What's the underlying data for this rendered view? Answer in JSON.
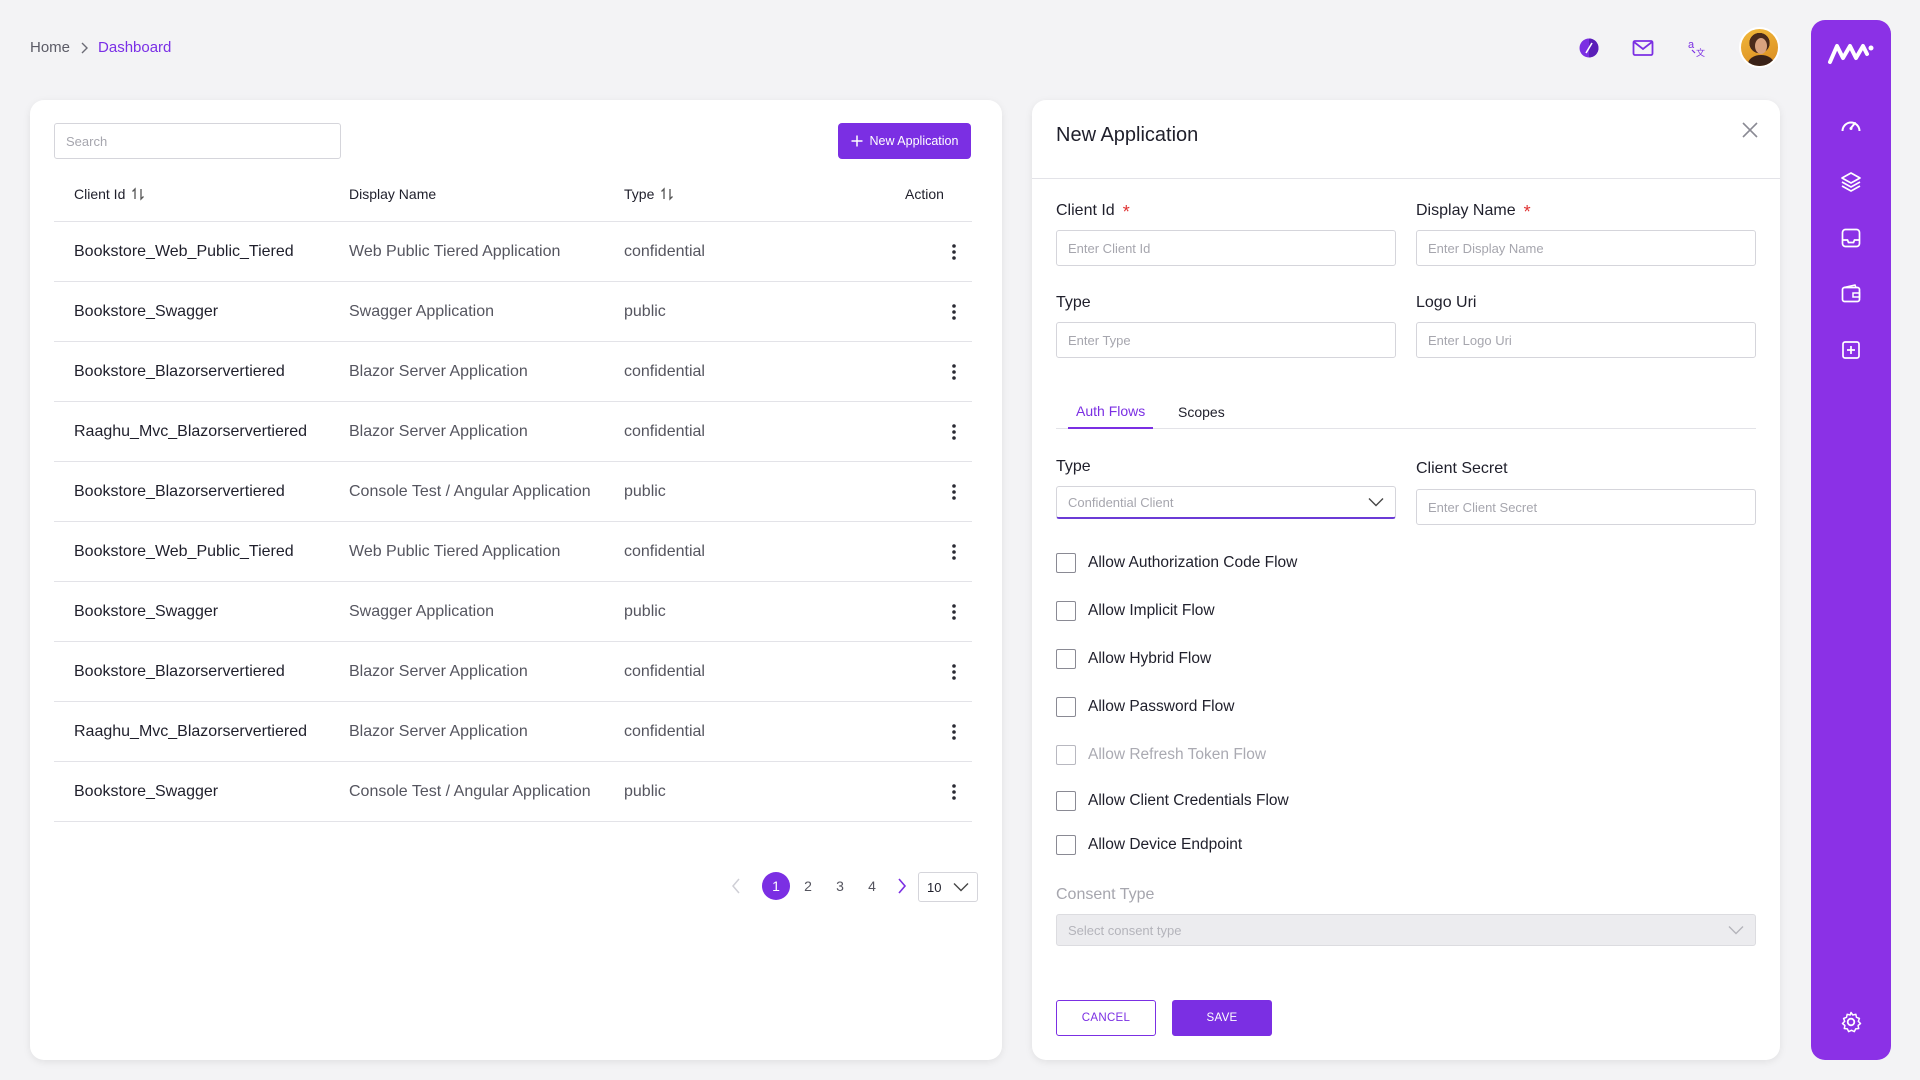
{
  "breadcrumb": {
    "home": "Home",
    "current": "Dashboard"
  },
  "topbar": {
    "icons": [
      "theme-icon",
      "mail-icon",
      "translate-icon",
      "avatar"
    ]
  },
  "theme": {
    "accent": "#7b2fe3",
    "rail": "#8b31e6",
    "required": "#e03131"
  },
  "list": {
    "search_placeholder": "Search",
    "new_button_label": "New Application",
    "columns": {
      "client_id": "Client Id",
      "display_name": "Display Name",
      "type": "Type",
      "action": "Action"
    },
    "rows": [
      {
        "client_id": "Bookstore_Web_Public_Tiered",
        "display_name": "Web Public Tiered Application",
        "type": "confidential"
      },
      {
        "client_id": "Bookstore_Swagger",
        "display_name": "Swagger Application",
        "type": "public"
      },
      {
        "client_id": "Bookstore_Blazorservertiered",
        "display_name": "Blazor Server Application",
        "type": "confidential"
      },
      {
        "client_id": "Raaghu_Mvc_Blazorservertiered",
        "display_name": "Blazor Server Application",
        "type": "confidential"
      },
      {
        "client_id": "Bookstore_Blazorservertiered",
        "display_name": "Console Test / Angular Application",
        "type": "public"
      },
      {
        "client_id": "Bookstore_Web_Public_Tiered",
        "display_name": "Web Public Tiered Application",
        "type": "confidential"
      },
      {
        "client_id": "Bookstore_Swagger",
        "display_name": "Swagger Application",
        "type": "public"
      },
      {
        "client_id": "Bookstore_Blazorservertiered",
        "display_name": "Blazor Server Application",
        "type": "confidential"
      },
      {
        "client_id": "Raaghu_Mvc_Blazorservertiered",
        "display_name": "Blazor Server Application",
        "type": "confidential"
      },
      {
        "client_id": "Bookstore_Swagger",
        "display_name": "Console Test / Angular Application",
        "type": "public"
      }
    ],
    "pagination": {
      "pages": [
        "1",
        "2",
        "3",
        "4"
      ],
      "current": "1",
      "page_size": "10"
    }
  },
  "form": {
    "title": "New Application",
    "client_id": {
      "label": "Client Id",
      "placeholder": "Enter Client Id",
      "required": "*"
    },
    "display_name": {
      "label": "Display Name",
      "placeholder": "Enter Display Name",
      "required": "*"
    },
    "type": {
      "label": "Type",
      "placeholder": "Enter Type"
    },
    "logo_uri": {
      "label": "Logo Uri",
      "placeholder": "Enter Logo Uri"
    },
    "tabs": [
      "Auth Flows",
      "Scopes"
    ],
    "active_tab": "Auth Flows",
    "auth_type": {
      "label": "Type",
      "value": "Confidential Client"
    },
    "client_secret": {
      "label": "Client Secret",
      "placeholder": "Enter Client Secret"
    },
    "checkboxes": [
      {
        "label": "Allow Authorization Code Flow",
        "disabled": false
      },
      {
        "label": "Allow Implicit Flow",
        "disabled": false
      },
      {
        "label": "Allow Hybrid Flow",
        "disabled": false
      },
      {
        "label": "Allow Password Flow",
        "disabled": false
      },
      {
        "label": "Allow Refresh Token Flow",
        "disabled": true
      },
      {
        "label": "Allow Client Credentials Flow",
        "disabled": false
      },
      {
        "label": "Allow Device Endpoint",
        "disabled": false
      }
    ],
    "consent_type": {
      "label": "Consent Type",
      "placeholder": "Select consent type"
    },
    "cancel_label": "CANCEL",
    "save_label": "SAVE"
  },
  "rail": {
    "icons": [
      "dashboard-icon",
      "layers-icon",
      "inbox-icon",
      "wallet-icon",
      "add-box-icon",
      "settings-icon"
    ]
  }
}
